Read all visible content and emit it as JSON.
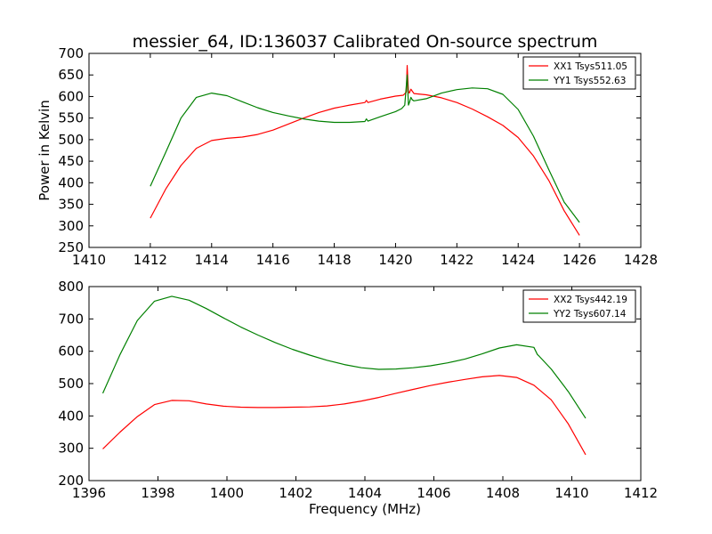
{
  "figure": {
    "title": "messier_64, ID:136037 Calibrated On-source spectrum"
  },
  "chart_data": [
    {
      "type": "line",
      "title": "messier_64, ID:136037 Calibrated On-source spectrum",
      "xlabel": "",
      "ylabel": "Power in Kelvin",
      "xlim": [
        1410,
        1428
      ],
      "ylim": [
        250,
        700
      ],
      "xticks": [
        "1410",
        "1412",
        "1414",
        "1416",
        "1418",
        "1420",
        "1422",
        "1424",
        "1426",
        "1428"
      ],
      "yticks": [
        "250",
        "300",
        "350",
        "400",
        "450",
        "500",
        "550",
        "600",
        "650",
        "700"
      ],
      "legend_position": "top-right",
      "grid": false,
      "series": [
        {
          "name": "XX1 Tsys511.05",
          "color": "#ff0000",
          "x": [
            1412,
            1412.5,
            1413,
            1413.5,
            1414,
            1414.5,
            1415,
            1415.5,
            1416,
            1416.5,
            1417,
            1417.5,
            1418,
            1418.5,
            1419,
            1419.05,
            1419.1,
            1419.5,
            1420,
            1420.25,
            1420.35,
            1420.38,
            1420.42,
            1420.45,
            1420.5,
            1420.55,
            1420.6,
            1421,
            1421.5,
            1422,
            1422.5,
            1423,
            1423.5,
            1424,
            1424.5,
            1425,
            1425.5,
            1426
          ],
          "y": [
            318,
            385,
            440,
            480,
            498,
            503,
            506,
            512,
            522,
            536,
            550,
            563,
            573,
            580,
            586,
            591,
            586,
            594,
            601,
            603,
            610,
            672,
            612,
            608,
            617,
            612,
            607,
            604,
            597,
            586,
            571,
            553,
            533,
            505,
            462,
            405,
            335,
            278
          ]
        },
        {
          "name": "YY1 Tsys552.63",
          "color": "#008000",
          "x": [
            1412,
            1412.5,
            1413,
            1413.5,
            1414,
            1414.5,
            1415,
            1415.5,
            1416,
            1416.5,
            1417,
            1417.5,
            1418,
            1418.5,
            1419,
            1419.05,
            1419.1,
            1419.5,
            1420,
            1420.2,
            1420.3,
            1420.38,
            1420.42,
            1420.45,
            1420.5,
            1420.55,
            1420.6,
            1421,
            1421.5,
            1422,
            1422.5,
            1423,
            1423.5,
            1424,
            1424.5,
            1425,
            1425.5,
            1426
          ],
          "y": [
            392,
            470,
            550,
            598,
            608,
            602,
            588,
            574,
            563,
            555,
            548,
            543,
            540,
            540,
            542,
            548,
            543,
            553,
            565,
            572,
            580,
            650,
            580,
            585,
            598,
            592,
            590,
            595,
            608,
            616,
            620,
            618,
            605,
            570,
            508,
            430,
            355,
            308
          ]
        }
      ]
    },
    {
      "type": "line",
      "title": "",
      "xlabel": "Frequency (MHz)",
      "ylabel": "",
      "xlim": [
        1396,
        1412
      ],
      "ylim": [
        200,
        800
      ],
      "xticks": [
        "1396",
        "1398",
        "1400",
        "1402",
        "1404",
        "1406",
        "1408",
        "1410",
        "1412"
      ],
      "yticks": [
        "200",
        "300",
        "400",
        "500",
        "600",
        "700",
        "800"
      ],
      "legend_position": "top-right",
      "grid": false,
      "series": [
        {
          "name": "XX2 Tsys442.19",
          "color": "#ff0000",
          "x": [
            1396.4,
            1396.9,
            1397.4,
            1397.9,
            1398.4,
            1398.9,
            1399.4,
            1399.9,
            1400.4,
            1400.9,
            1401.4,
            1401.9,
            1402.4,
            1402.9,
            1403.4,
            1403.9,
            1404.4,
            1404.9,
            1405.4,
            1405.9,
            1406.4,
            1406.9,
            1407.4,
            1407.9,
            1408.4,
            1408.9,
            1409.4,
            1409.9,
            1410.4
          ],
          "y": [
            298,
            350,
            398,
            435,
            448,
            447,
            437,
            430,
            427,
            426,
            426,
            427,
            428,
            431,
            437,
            446,
            457,
            470,
            482,
            494,
            504,
            513,
            521,
            525,
            519,
            495,
            450,
            375,
            280
          ]
        },
        {
          "name": "YY2 Tsys607.14",
          "color": "#008000",
          "x": [
            1396.4,
            1396.9,
            1397.4,
            1397.9,
            1398.4,
            1398.9,
            1399.4,
            1399.9,
            1400.4,
            1400.9,
            1401.4,
            1401.9,
            1402.4,
            1402.9,
            1403.4,
            1403.9,
            1404.4,
            1404.9,
            1405.4,
            1405.9,
            1406.4,
            1406.9,
            1407.4,
            1407.9,
            1408.4,
            1408.9,
            1409.0,
            1409.05,
            1409.4,
            1409.9,
            1410.4
          ],
          "y": [
            470,
            590,
            695,
            755,
            770,
            758,
            732,
            703,
            675,
            650,
            627,
            606,
            588,
            572,
            559,
            549,
            544,
            545,
            549,
            555,
            564,
            576,
            592,
            610,
            620,
            612,
            590,
            585,
            545,
            475,
            393
          ]
        }
      ]
    }
  ]
}
